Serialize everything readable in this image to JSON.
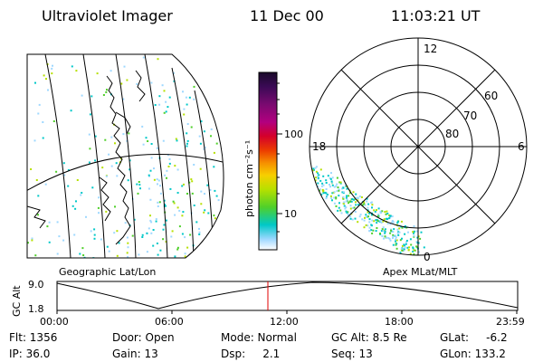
{
  "header": {
    "instrument": "Ultraviolet Imager",
    "date": "11 Dec 00",
    "time": "11:03:21 UT"
  },
  "geo_panel": {
    "label": "Geographic Lat/Lon"
  },
  "polar_panel": {
    "label": "Apex MLat/MLT",
    "mlt_labels": [
      "12",
      "18",
      "6",
      "0"
    ],
    "lat_labels": [
      "60",
      "70",
      "80"
    ]
  },
  "colorbar": {
    "unit_label": "photon cm⁻²s⁻¹",
    "tick_labels": [
      "100",
      "10"
    ],
    "colors": [
      "#1a0a2a",
      "#3a0a55",
      "#7a0a70",
      "#b2007f",
      "#d4002a",
      "#ec3d00",
      "#f68f00",
      "#f7cf00",
      "#b6e000",
      "#4fd02a",
      "#00c8c8",
      "#9ed8ff",
      "#ffffff"
    ]
  },
  "altitude_plot": {
    "axis_label": "GC Alt",
    "y_ticks": [
      "9.0",
      "1.8"
    ],
    "x_ticks": [
      "00:00",
      "06:00",
      "12:00",
      "18:00",
      "23:59"
    ],
    "current_time_marker": "11:03:21"
  },
  "status": {
    "flt": "Flt: 1356",
    "ip": "IP: 36.0",
    "door": "Door: Open",
    "gain": "Gain: 13",
    "mode": "Mode: Normal",
    "dsp": "Dsp:     2.1",
    "gc_alt": "GC Alt: 8.5 Re",
    "seq": "Seq: 13",
    "glat": "GLat:     -6.2",
    "glon": "GLon: 133.2"
  }
}
